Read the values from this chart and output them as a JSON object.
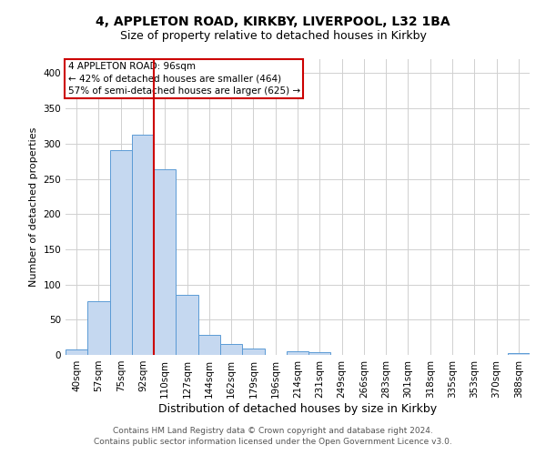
{
  "title1": "4, APPLETON ROAD, KIRKBY, LIVERPOOL, L32 1BA",
  "title2": "Size of property relative to detached houses in Kirkby",
  "xlabel": "Distribution of detached houses by size in Kirkby",
  "ylabel": "Number of detached properties",
  "bin_labels": [
    "40sqm",
    "57sqm",
    "75sqm",
    "92sqm",
    "110sqm",
    "127sqm",
    "144sqm",
    "162sqm",
    "179sqm",
    "196sqm",
    "214sqm",
    "231sqm",
    "249sqm",
    "266sqm",
    "283sqm",
    "301sqm",
    "318sqm",
    "335sqm",
    "353sqm",
    "370sqm",
    "388sqm"
  ],
  "bin_values": [
    8,
    76,
    291,
    313,
    263,
    85,
    28,
    16,
    9,
    0,
    5,
    4,
    0,
    0,
    0,
    0,
    0,
    0,
    0,
    0,
    3
  ],
  "bar_color": "#c5d8f0",
  "bar_edge_color": "#5b9bd5",
  "vline_color": "#cc0000",
  "vline_index": 3,
  "annotation_line1": "4 APPLETON ROAD: 96sqm",
  "annotation_line2": "← 42% of detached houses are smaller (464)",
  "annotation_line3": "57% of semi-detached houses are larger (625) →",
  "annotation_box_color": "#cc0000",
  "ylim": [
    0,
    420
  ],
  "yticks": [
    0,
    50,
    100,
    150,
    200,
    250,
    300,
    350,
    400
  ],
  "footer1": "Contains HM Land Registry data © Crown copyright and database right 2024.",
  "footer2": "Contains public sector information licensed under the Open Government Licence v3.0.",
  "bg_color": "#ffffff",
  "grid_color": "#d0d0d0",
  "title1_fontsize": 10,
  "title2_fontsize": 9,
  "xlabel_fontsize": 9,
  "ylabel_fontsize": 8,
  "tick_fontsize": 7.5,
  "footer_fontsize": 6.5
}
